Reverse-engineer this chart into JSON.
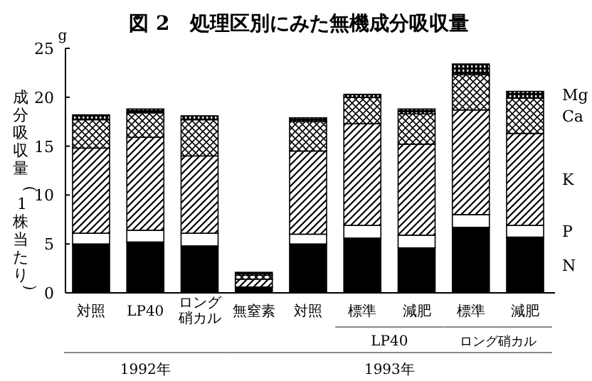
{
  "chart_data": {
    "type": "bar",
    "stacked": true,
    "title": "図 2　処理区別にみた無機成分吸収量",
    "ylabel": "成分吸収量（1株当たり）",
    "categories": [
      "対照",
      "LP40",
      "ロング硝カル",
      "無窒素",
      "対照",
      "標準",
      "減肥",
      "標準",
      "減肥"
    ],
    "series": [
      {
        "name": "N",
        "color": "#000000",
        "values": [
          5.0,
          5.2,
          4.8,
          0.6,
          5.0,
          5.6,
          4.6,
          6.7,
          5.7
        ]
      },
      {
        "name": "P",
        "color": "#ffffff",
        "values": [
          1.1,
          1.2,
          1.3,
          null,
          1.0,
          1.3,
          1.3,
          1.3,
          1.2
        ]
      },
      {
        "name": "K",
        "color": "#000000",
        "values": [
          8.7,
          9.5,
          7.9,
          0.8,
          8.5,
          10.4,
          9.3,
          10.7,
          9.4
        ]
      },
      {
        "name": "Ca",
        "color": "#000000",
        "values": [
          2.9,
          2.5,
          3.7,
          0.4,
          3.0,
          2.7,
          3.1,
          3.6,
          3.6
        ]
      },
      {
        "name": "Mg",
        "color": "#000000",
        "values": [
          0.5,
          0.4,
          0.4,
          0.3,
          0.4,
          0.3,
          0.5,
          1.1,
          0.7
        ]
      }
    ],
    "ylim": [
      0,
      25
    ],
    "yticks": [
      0,
      5,
      10,
      15,
      20,
      25
    ],
    "annotations": [
      "g",
      "LP40",
      "ロング硝カル",
      "1992年",
      "1993年"
    ]
  }
}
